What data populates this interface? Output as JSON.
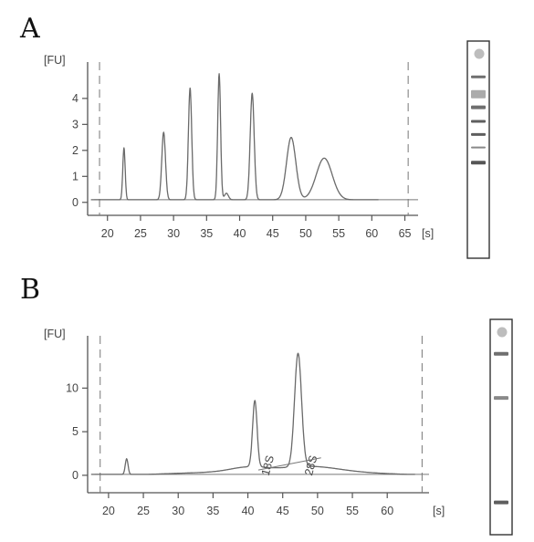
{
  "panels": {
    "a": {
      "letter": "A"
    },
    "b": {
      "letter": "B"
    }
  },
  "chart_data": [
    {
      "type": "line",
      "panel": "A",
      "ylabel": "[FU]",
      "xunit": "[s]",
      "xlim": [
        17,
        67
      ],
      "ylim": [
        -0.5,
        5.4
      ],
      "xticks": [
        20,
        25,
        30,
        35,
        40,
        45,
        50,
        55,
        60,
        65
      ],
      "yticks": [
        0,
        1,
        2,
        3,
        4
      ],
      "markers_x": [
        18.8,
        65.5
      ],
      "baseline": 0.1,
      "peaks": [
        {
          "x": 22.5,
          "height": 2.0,
          "sigma": 0.18
        },
        {
          "x": 28.5,
          "height": 2.6,
          "sigma": 0.28
        },
        {
          "x": 32.5,
          "height": 4.3,
          "sigma": 0.25
        },
        {
          "x": 36.9,
          "height": 4.85,
          "sigma": 0.22
        },
        {
          "x": 38.0,
          "height": 0.25,
          "sigma": 0.3
        },
        {
          "x": 41.9,
          "height": 4.1,
          "sigma": 0.3
        },
        {
          "x": 47.8,
          "height": 2.4,
          "sigma": 0.7
        },
        {
          "x": 52.8,
          "height": 1.6,
          "sigma": 1.2
        }
      ],
      "gel_bands": [
        {
          "pos": 0.165,
          "intensity": 0.7,
          "width": 3
        },
        {
          "pos": 0.245,
          "intensity": 0.35,
          "width": 9
        },
        {
          "pos": 0.305,
          "intensity": 0.7,
          "width": 4
        },
        {
          "pos": 0.37,
          "intensity": 0.8,
          "width": 3
        },
        {
          "pos": 0.43,
          "intensity": 0.8,
          "width": 3
        },
        {
          "pos": 0.49,
          "intensity": 0.55,
          "width": 2
        },
        {
          "pos": 0.56,
          "intensity": 0.85,
          "width": 4
        }
      ]
    },
    {
      "type": "line",
      "panel": "B",
      "ylabel": "[FU]",
      "xunit": "[s]",
      "xlim": [
        17,
        66
      ],
      "ylim": [
        -2,
        16
      ],
      "xticks": [
        20,
        25,
        30,
        35,
        40,
        45,
        50,
        55,
        60
      ],
      "yticks": [
        0,
        5,
        10
      ],
      "markers_x": [
        18.8,
        65.0
      ],
      "baseline": 0.1,
      "peaks": [
        {
          "x": 22.6,
          "height": 1.8,
          "sigma": 0.2
        },
        {
          "x": 41.0,
          "height": 7.6,
          "sigma": 0.32
        },
        {
          "x": 47.2,
          "height": 13.0,
          "sigma": 0.5
        },
        {
          "x": 40.0,
          "height": 0.5,
          "sigma": 2.5
        },
        {
          "x": 49.0,
          "height": 0.6,
          "sigma": 4
        }
      ],
      "broad_bump": {
        "start": 25.5,
        "end": 63,
        "height": 0.35
      },
      "annotations": [
        "18S",
        "28S"
      ],
      "gel_bands": [
        {
          "pos": 0.16,
          "intensity": 0.7,
          "width": 4
        },
        {
          "pos": 0.365,
          "intensity": 0.55,
          "width": 4
        },
        {
          "pos": 0.85,
          "intensity": 0.8,
          "width": 4
        }
      ]
    }
  ]
}
